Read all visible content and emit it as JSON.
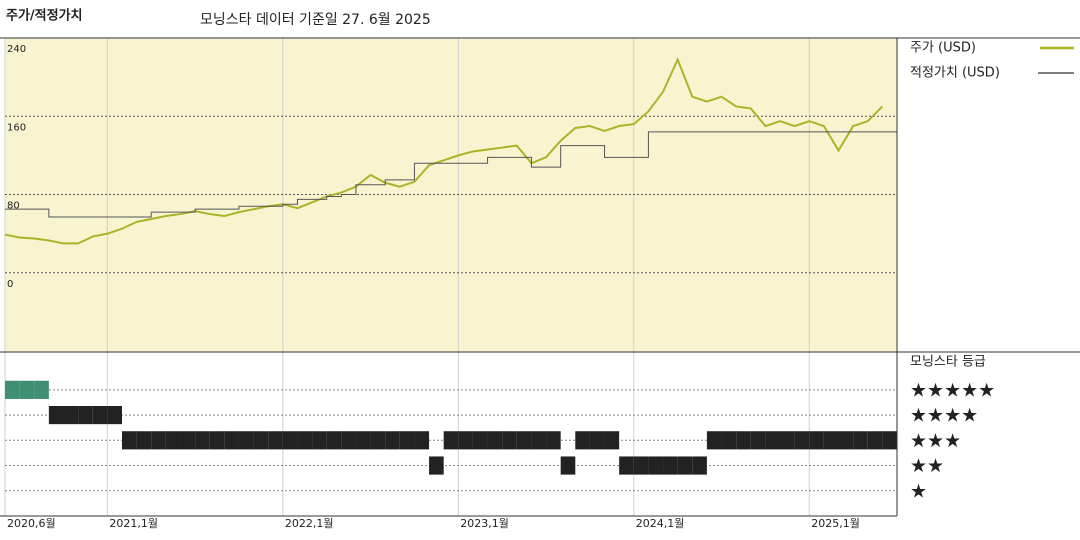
{
  "chart_data": [
    {
      "type": "line",
      "title": "주가/적정가치",
      "subtitle": "모닝스타 데이터 기준일 27. 6월 2025",
      "x": [
        "2020-06",
        "2020-07",
        "2020-08",
        "2020-09",
        "2020-10",
        "2020-11",
        "2020-12",
        "2021-01",
        "2021-02",
        "2021-03",
        "2021-04",
        "2021-05",
        "2021-06",
        "2021-07",
        "2021-08",
        "2021-09",
        "2021-10",
        "2021-11",
        "2021-12",
        "2022-01",
        "2022-02",
        "2022-03",
        "2022-04",
        "2022-05",
        "2022-06",
        "2022-07",
        "2022-08",
        "2022-09",
        "2022-10",
        "2022-11",
        "2022-12",
        "2023-01",
        "2023-02",
        "2023-03",
        "2023-04",
        "2023-05",
        "2023-06",
        "2023-07",
        "2023-08",
        "2023-09",
        "2023-10",
        "2023-11",
        "2023-12",
        "2024-01",
        "2024-02",
        "2024-03",
        "2024-04",
        "2024-05",
        "2024-06",
        "2024-07",
        "2024-08",
        "2024-09",
        "2024-10",
        "2024-11",
        "2024-12",
        "2025-01",
        "2025-02",
        "2025-03",
        "2025-04",
        "2025-05",
        "2025-06"
      ],
      "xlim": [
        "2020-06",
        "2025-07"
      ],
      "xticks": [
        {
          "value": "2020-06",
          "label": "2020,6월"
        },
        {
          "value": "2021-01",
          "label": "2021,1월"
        },
        {
          "value": "2022-01",
          "label": "2022,1월"
        },
        {
          "value": "2023-01",
          "label": "2023,1월"
        },
        {
          "value": "2024-01",
          "label": "2024,1월"
        },
        {
          "value": "2025-01",
          "label": "2025,1월"
        }
      ],
      "ylim": [
        -81,
        240
      ],
      "yticks": [
        0,
        80,
        160,
        240
      ],
      "grid": true,
      "background": "#f8f4d0",
      "series": [
        {
          "name": "주가 (USD)",
          "color": "#a9b527",
          "width": 2,
          "values": [
            39,
            36,
            35,
            33,
            30,
            30,
            37,
            40,
            45,
            52,
            55,
            58,
            60,
            63,
            60,
            58,
            62,
            65,
            68,
            70,
            66,
            72,
            78,
            82,
            88,
            100,
            92,
            88,
            93,
            110,
            115,
            120,
            124,
            126,
            128,
            130,
            112,
            118,
            135,
            148,
            150,
            145,
            150,
            152,
            165,
            185,
            218,
            180,
            175,
            180,
            170,
            168,
            150,
            155,
            150,
            155,
            150,
            125,
            150,
            155,
            170
          ]
        },
        {
          "name": "적정가치 (USD)",
          "color": "#555555",
          "width": 1,
          "step": true,
          "values": [
            65,
            65,
            65,
            57,
            57,
            57,
            57,
            57,
            57,
            57,
            62,
            62,
            62,
            65,
            65,
            65,
            68,
            68,
            68,
            70,
            75,
            75,
            78,
            80,
            90,
            90,
            95,
            95,
            112,
            112,
            112,
            112,
            112,
            118,
            118,
            118,
            108,
            108,
            130,
            130,
            130,
            118,
            118,
            118,
            144,
            144,
            144,
            144,
            144,
            144,
            144,
            144,
            144,
            144,
            144,
            144,
            144,
            144,
            144,
            144,
            144
          ]
        }
      ]
    },
    {
      "type": "rating",
      "title": "모닝스타 등급",
      "ylim": [
        0,
        6.5
      ],
      "yticks": [
        {
          "value": 5,
          "label": "★★★★★"
        },
        {
          "value": 4,
          "label": "★★★★"
        },
        {
          "value": 3,
          "label": "★★★"
        },
        {
          "value": 2,
          "label": "★★"
        },
        {
          "value": 1,
          "label": "★"
        }
      ],
      "colors": {
        "5": "#3f8f73",
        "other": "#222222"
      },
      "values": [
        5,
        5,
        5,
        4,
        4,
        4,
        4,
        4,
        3,
        3,
        3,
        3,
        3,
        3,
        3,
        3,
        3,
        3,
        3,
        3,
        3,
        3,
        3,
        3,
        3,
        3,
        3,
        3,
        3,
        2,
        3,
        3,
        3,
        3,
        3,
        3,
        3,
        3,
        2,
        3,
        3,
        3,
        2,
        2,
        2,
        2,
        2,
        2,
        3,
        3,
        3,
        3,
        3,
        3,
        3,
        3,
        3,
        3,
        3,
        3,
        3
      ]
    }
  ]
}
